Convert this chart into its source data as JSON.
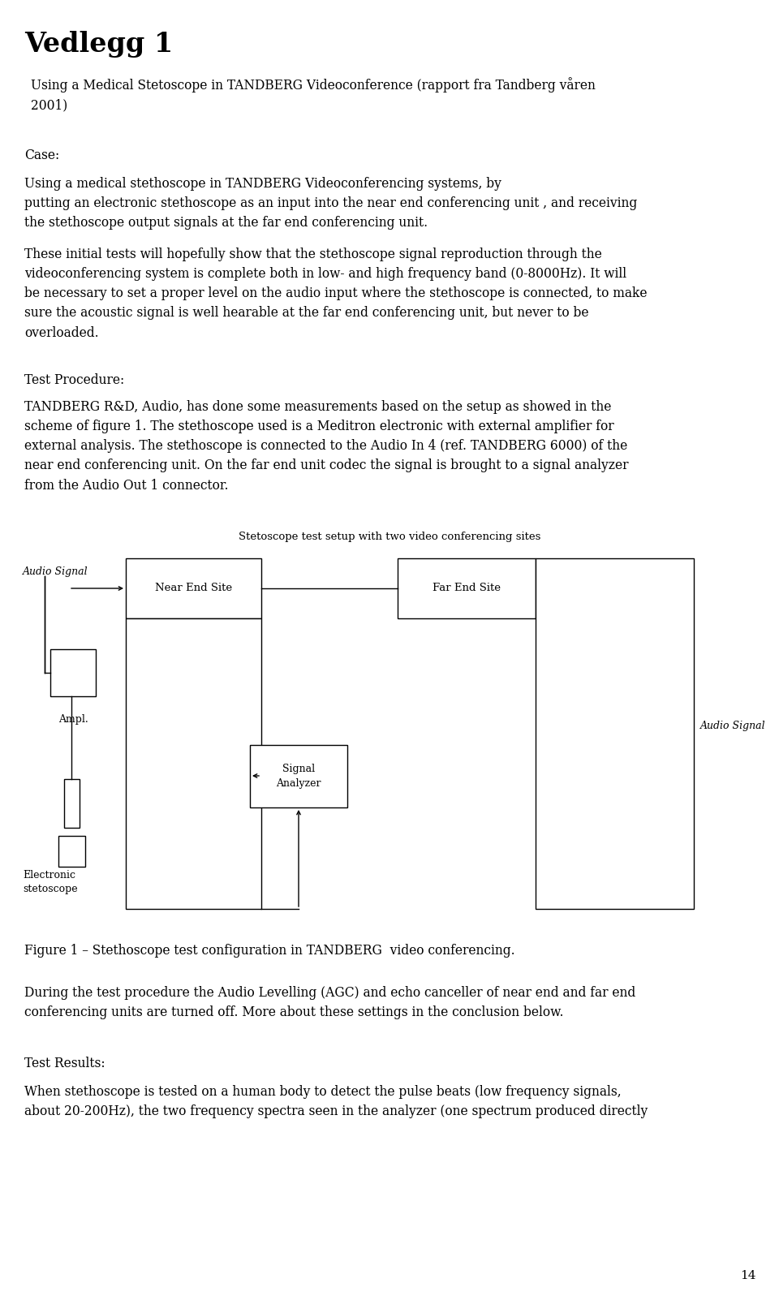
{
  "title": "Vedlegg 1",
  "subtitle": "Using a Medical Stetoscope in TANDBERG Videoconference (rapport fra Tandberg våren\n2001)",
  "section1_label": "Case:",
  "section1_text": "Using a medical stethoscope in TANDBERG Videoconferencing systems, by\nputting an electronic stethoscope as an input into the near end conferencing unit , and receiving\nthe stethoscope output signals at the far end conferencing unit.",
  "para1_text": "These initial tests will hopefully show that the stethoscope signal reproduction through the\nvideoconferencing system is complete both in low- and high frequency band (0-8000Hz). It will\nbe necessary to set a proper level on the audio input where the stethoscope is connected, to make\nsure the acoustic signal is well hearable at the far end conferencing unit, but never to be\noverloaded.",
  "section2_label": "Test Procedure:",
  "para2_text": "TANDBERG R&D, Audio, has done some measurements based on the setup as showed in the\nscheme of figure 1. The stethoscope used is a Meditron electronic with external amplifier for\nexternal analysis. The stethoscope is connected to the Audio In 4 (ref. TANDBERG 6000) of the\nnear end conferencing unit. On the far end unit codec the signal is brought to a signal analyzer\nfrom the Audio Out 1 connector.",
  "fig_title": "Stetoscope test setup with two video conferencing sites",
  "fig_caption": "Figure 1 – Stethoscope test configuration in TANDBERG  video conferencing.",
  "para3_text": "During the test procedure the Audio Levelling (AGC) and echo canceller of near end and far end\nconferencing units are turned off. More about these settings in the conclusion below.",
  "section3_label": "Test Results:",
  "para4_text": "When stethoscope is tested on a human body to detect the pulse beats (low frequency signals,\nabout 20-200Hz), the two frequency spectra seen in the analyzer (one spectrum produced directly",
  "page_number": "14",
  "bg_color": "#ffffff",
  "text_color": "#000000"
}
